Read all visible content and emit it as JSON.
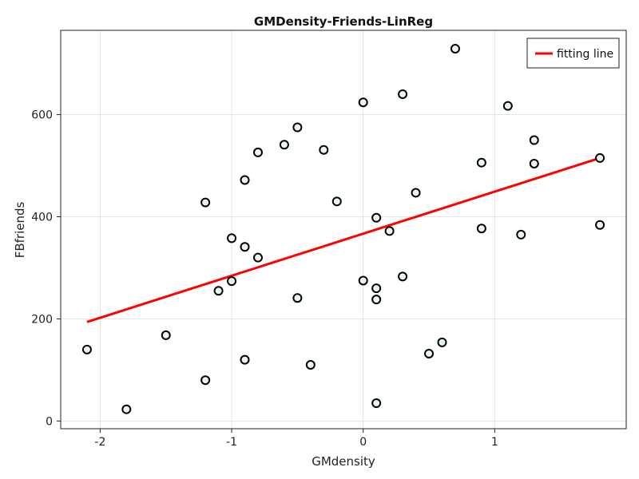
{
  "chart_data": {
    "type": "scatter",
    "title": "GMDensity-Friends-LinReg",
    "xlabel": "GMdensity",
    "ylabel": "FBfriends",
    "xlim": [
      -2.3,
      2.0
    ],
    "ylim": [
      -15,
      765
    ],
    "x_ticks": [
      -2,
      -1,
      0,
      1
    ],
    "y_ticks": [
      0,
      200,
      400,
      600
    ],
    "grid": true,
    "legend": {
      "placement": "top-right",
      "entries": [
        "fitting line"
      ]
    },
    "series": [
      {
        "kind": "scatter",
        "points": [
          [
            -2.1,
            140
          ],
          [
            -1.8,
            23
          ],
          [
            -1.5,
            168
          ],
          [
            -1.2,
            428
          ],
          [
            -1.2,
            80
          ],
          [
            -1.1,
            255
          ],
          [
            -1.0,
            358
          ],
          [
            -1.0,
            274
          ],
          [
            -0.9,
            472
          ],
          [
            -0.9,
            341
          ],
          [
            -0.9,
            120
          ],
          [
            -0.8,
            526
          ],
          [
            -0.8,
            320
          ],
          [
            -0.6,
            541
          ],
          [
            -0.5,
            575
          ],
          [
            -0.5,
            241
          ],
          [
            -0.4,
            110
          ],
          [
            -0.3,
            531
          ],
          [
            -0.2,
            430
          ],
          [
            0.0,
            624
          ],
          [
            0.0,
            275
          ],
          [
            0.1,
            398
          ],
          [
            0.1,
            260
          ],
          [
            0.1,
            238
          ],
          [
            0.1,
            35
          ],
          [
            0.2,
            372
          ],
          [
            0.3,
            640
          ],
          [
            0.3,
            283
          ],
          [
            0.4,
            447
          ],
          [
            0.5,
            132
          ],
          [
            0.6,
            154
          ],
          [
            0.7,
            729
          ],
          [
            0.9,
            506
          ],
          [
            0.9,
            377
          ],
          [
            1.1,
            617
          ],
          [
            1.2,
            365
          ],
          [
            1.3,
            550
          ],
          [
            1.3,
            504
          ],
          [
            1.8,
            515
          ],
          [
            1.8,
            384
          ]
        ],
        "marker_fill": "#e8f7e8",
        "marker_stroke": "#000000"
      },
      {
        "kind": "line",
        "name": "fitting line",
        "x": [
          -2.1,
          1.8
        ],
        "y": [
          194,
          515
        ],
        "color": "#ff0000"
      }
    ]
  }
}
